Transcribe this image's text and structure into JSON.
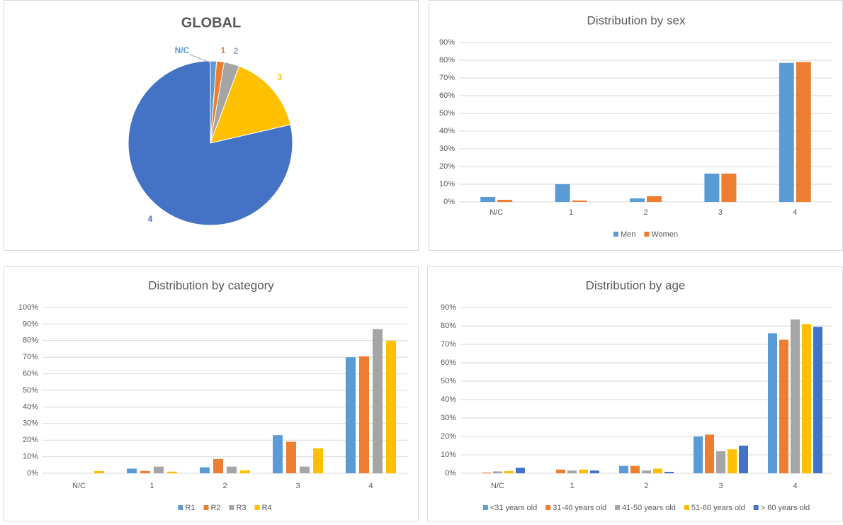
{
  "chart_data": [
    {
      "type": "pie",
      "title": "GLOBAL",
      "categories": [
        "N/C",
        "1",
        "2",
        "3",
        "4"
      ],
      "values": [
        1.2,
        1.5,
        3,
        15.7,
        78.6
      ],
      "colors": [
        "#5b9bd5",
        "#ed7d31",
        "#a5a5a5",
        "#ffc000",
        "#4472c4"
      ]
    },
    {
      "type": "bar",
      "title": "Distribution by sex",
      "categories": [
        "N/C",
        "1",
        "2",
        "3",
        "4"
      ],
      "series": [
        {
          "name": "Men",
          "color": "#5b9bd5",
          "values": [
            2.8,
            10,
            2,
            16,
            78.5
          ]
        },
        {
          "name": "Women",
          "color": "#ed7d31",
          "values": [
            1.2,
            0.8,
            3.2,
            16,
            79
          ]
        }
      ],
      "ylim": [
        0,
        90
      ],
      "yticks": [
        {
          "value": 0,
          "label": "0%"
        },
        {
          "value": 10,
          "label": "10%"
        },
        {
          "value": 20,
          "label": "20%"
        },
        {
          "value": 30,
          "label": "30%"
        },
        {
          "value": 40,
          "label": "40%"
        },
        {
          "value": 50,
          "label": "50%"
        },
        {
          "value": 60,
          "label": "60%"
        },
        {
          "value": 70,
          "label": "70%"
        },
        {
          "value": 80,
          "label": "80%"
        },
        {
          "value": 90,
          "label": "90%"
        }
      ],
      "grid": true
    },
    {
      "type": "bar",
      "title": "Distribution by category",
      "categories": [
        "N/C",
        "1",
        "2",
        "3",
        "4"
      ],
      "series": [
        {
          "name": "R1",
          "color": "#5b9bd5",
          "values": [
            0,
            2.8,
            3.6,
            23,
            70
          ]
        },
        {
          "name": "R2",
          "color": "#ed7d31",
          "values": [
            0,
            1.4,
            8.6,
            19,
            70.5
          ]
        },
        {
          "name": "R3",
          "color": "#a5a5a5",
          "values": [
            0,
            4,
            4,
            4,
            87
          ]
        },
        {
          "name": "R4",
          "color": "#ffc000",
          "values": [
            1.3,
            1,
            1.8,
            15,
            80
          ]
        }
      ],
      "ylim": [
        0,
        100
      ],
      "yticks": [
        {
          "value": 0,
          "label": "0%"
        },
        {
          "value": 10,
          "label": "10%"
        },
        {
          "value": 20,
          "label": "20%"
        },
        {
          "value": 30,
          "label": "30%"
        },
        {
          "value": 40,
          "label": "40%"
        },
        {
          "value": 50,
          "label": "50%"
        },
        {
          "value": 60,
          "label": "60%"
        },
        {
          "value": 70,
          "label": "70%"
        },
        {
          "value": 80,
          "label": "80%"
        },
        {
          "value": 90,
          "label": "90%"
        },
        {
          "value": 100,
          "label": "100%"
        }
      ],
      "grid": true
    },
    {
      "type": "bar",
      "title": "Distribution by age",
      "categories": [
        "N/C",
        "1",
        "2",
        "3",
        "4"
      ],
      "series": [
        {
          "name": "<31 years old",
          "color": "#5b9bd5",
          "values": [
            0,
            0,
            4,
            20,
            76
          ]
        },
        {
          "name": "31-40 years old",
          "color": "#ed7d31",
          "values": [
            0.4,
            2,
            4,
            21,
            72.5
          ]
        },
        {
          "name": "41-50 years old",
          "color": "#a5a5a5",
          "values": [
            1,
            1.5,
            1.5,
            12,
            83.5
          ]
        },
        {
          "name": "51-60 years old",
          "color": "#ffc000",
          "values": [
            1.2,
            2,
            2.5,
            13,
            81
          ]
        },
        {
          "name": "> 60 years old",
          "color": "#4472c4",
          "values": [
            3,
            1.5,
            0.8,
            15,
            79.5
          ]
        }
      ],
      "ylim": [
        0,
        90
      ],
      "yticks": [
        {
          "value": 0,
          "label": "0%"
        },
        {
          "value": 10,
          "label": "10%"
        },
        {
          "value": 20,
          "label": "20%"
        },
        {
          "value": 30,
          "label": "30%"
        },
        {
          "value": 40,
          "label": "40%"
        },
        {
          "value": 50,
          "label": "50%"
        },
        {
          "value": 60,
          "label": "60%"
        },
        {
          "value": 70,
          "label": "70%"
        },
        {
          "value": 80,
          "label": "80%"
        },
        {
          "value": 90,
          "label": "90%"
        }
      ],
      "grid": true
    }
  ]
}
